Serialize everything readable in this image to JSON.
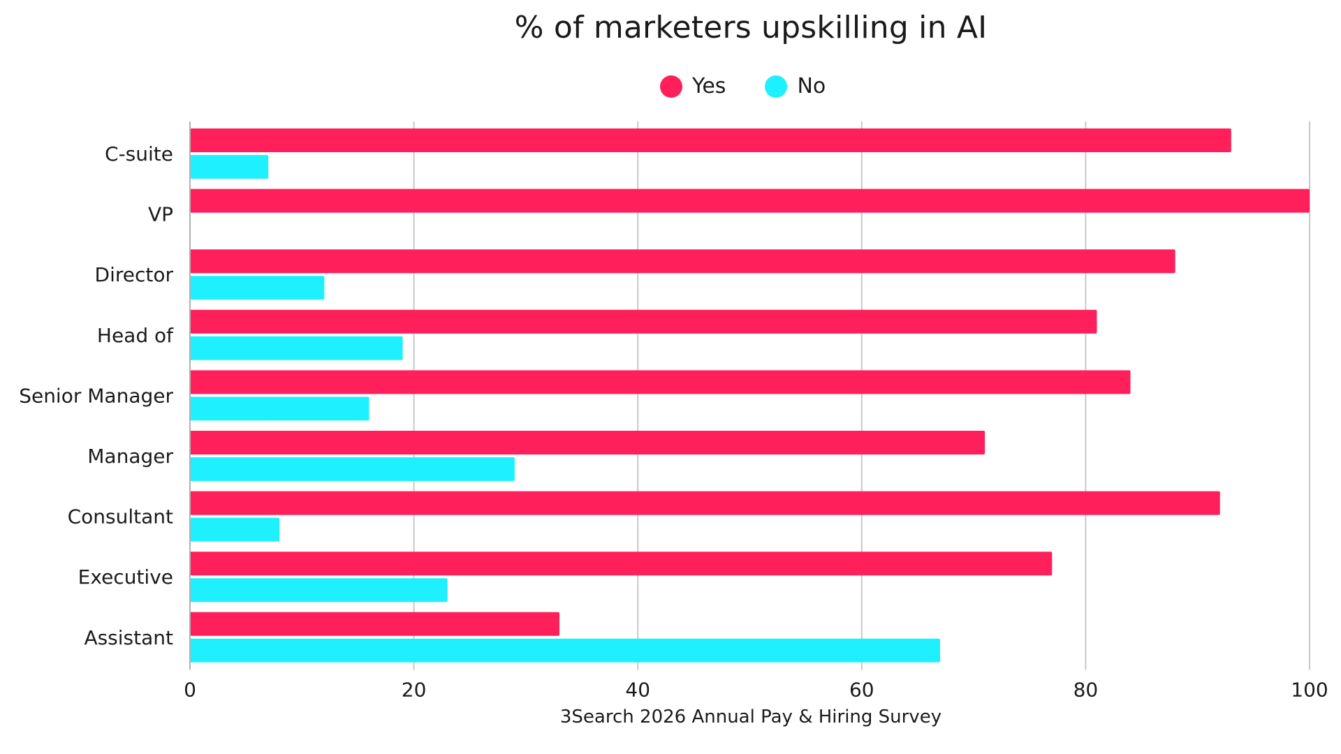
{
  "chart_data": {
    "type": "bar",
    "orientation": "horizontal",
    "title": "% of marketers upskilling in AI",
    "xlabel": "3Search 2026 Annual Pay & Hiring Survey",
    "ylabel": "",
    "xlim": [
      0,
      100
    ],
    "x_ticks": [
      "0",
      "20",
      "40",
      "60",
      "80",
      "100"
    ],
    "grid": "vertical",
    "legend_placement": "top-center",
    "categories": [
      "C-suite",
      "VP",
      "Director",
      "Head of",
      "Senior Manager",
      "Manager",
      "Consultant",
      "Executive",
      "Assistant"
    ],
    "series": [
      {
        "name": "Yes",
        "color": "#ff1f5a",
        "values": [
          93,
          100,
          88,
          81,
          84,
          71,
          92,
          77,
          33
        ]
      },
      {
        "name": "No",
        "color": "#1ff0ff",
        "values": [
          7,
          0,
          12,
          19,
          16,
          29,
          8,
          23,
          67
        ]
      }
    ]
  }
}
